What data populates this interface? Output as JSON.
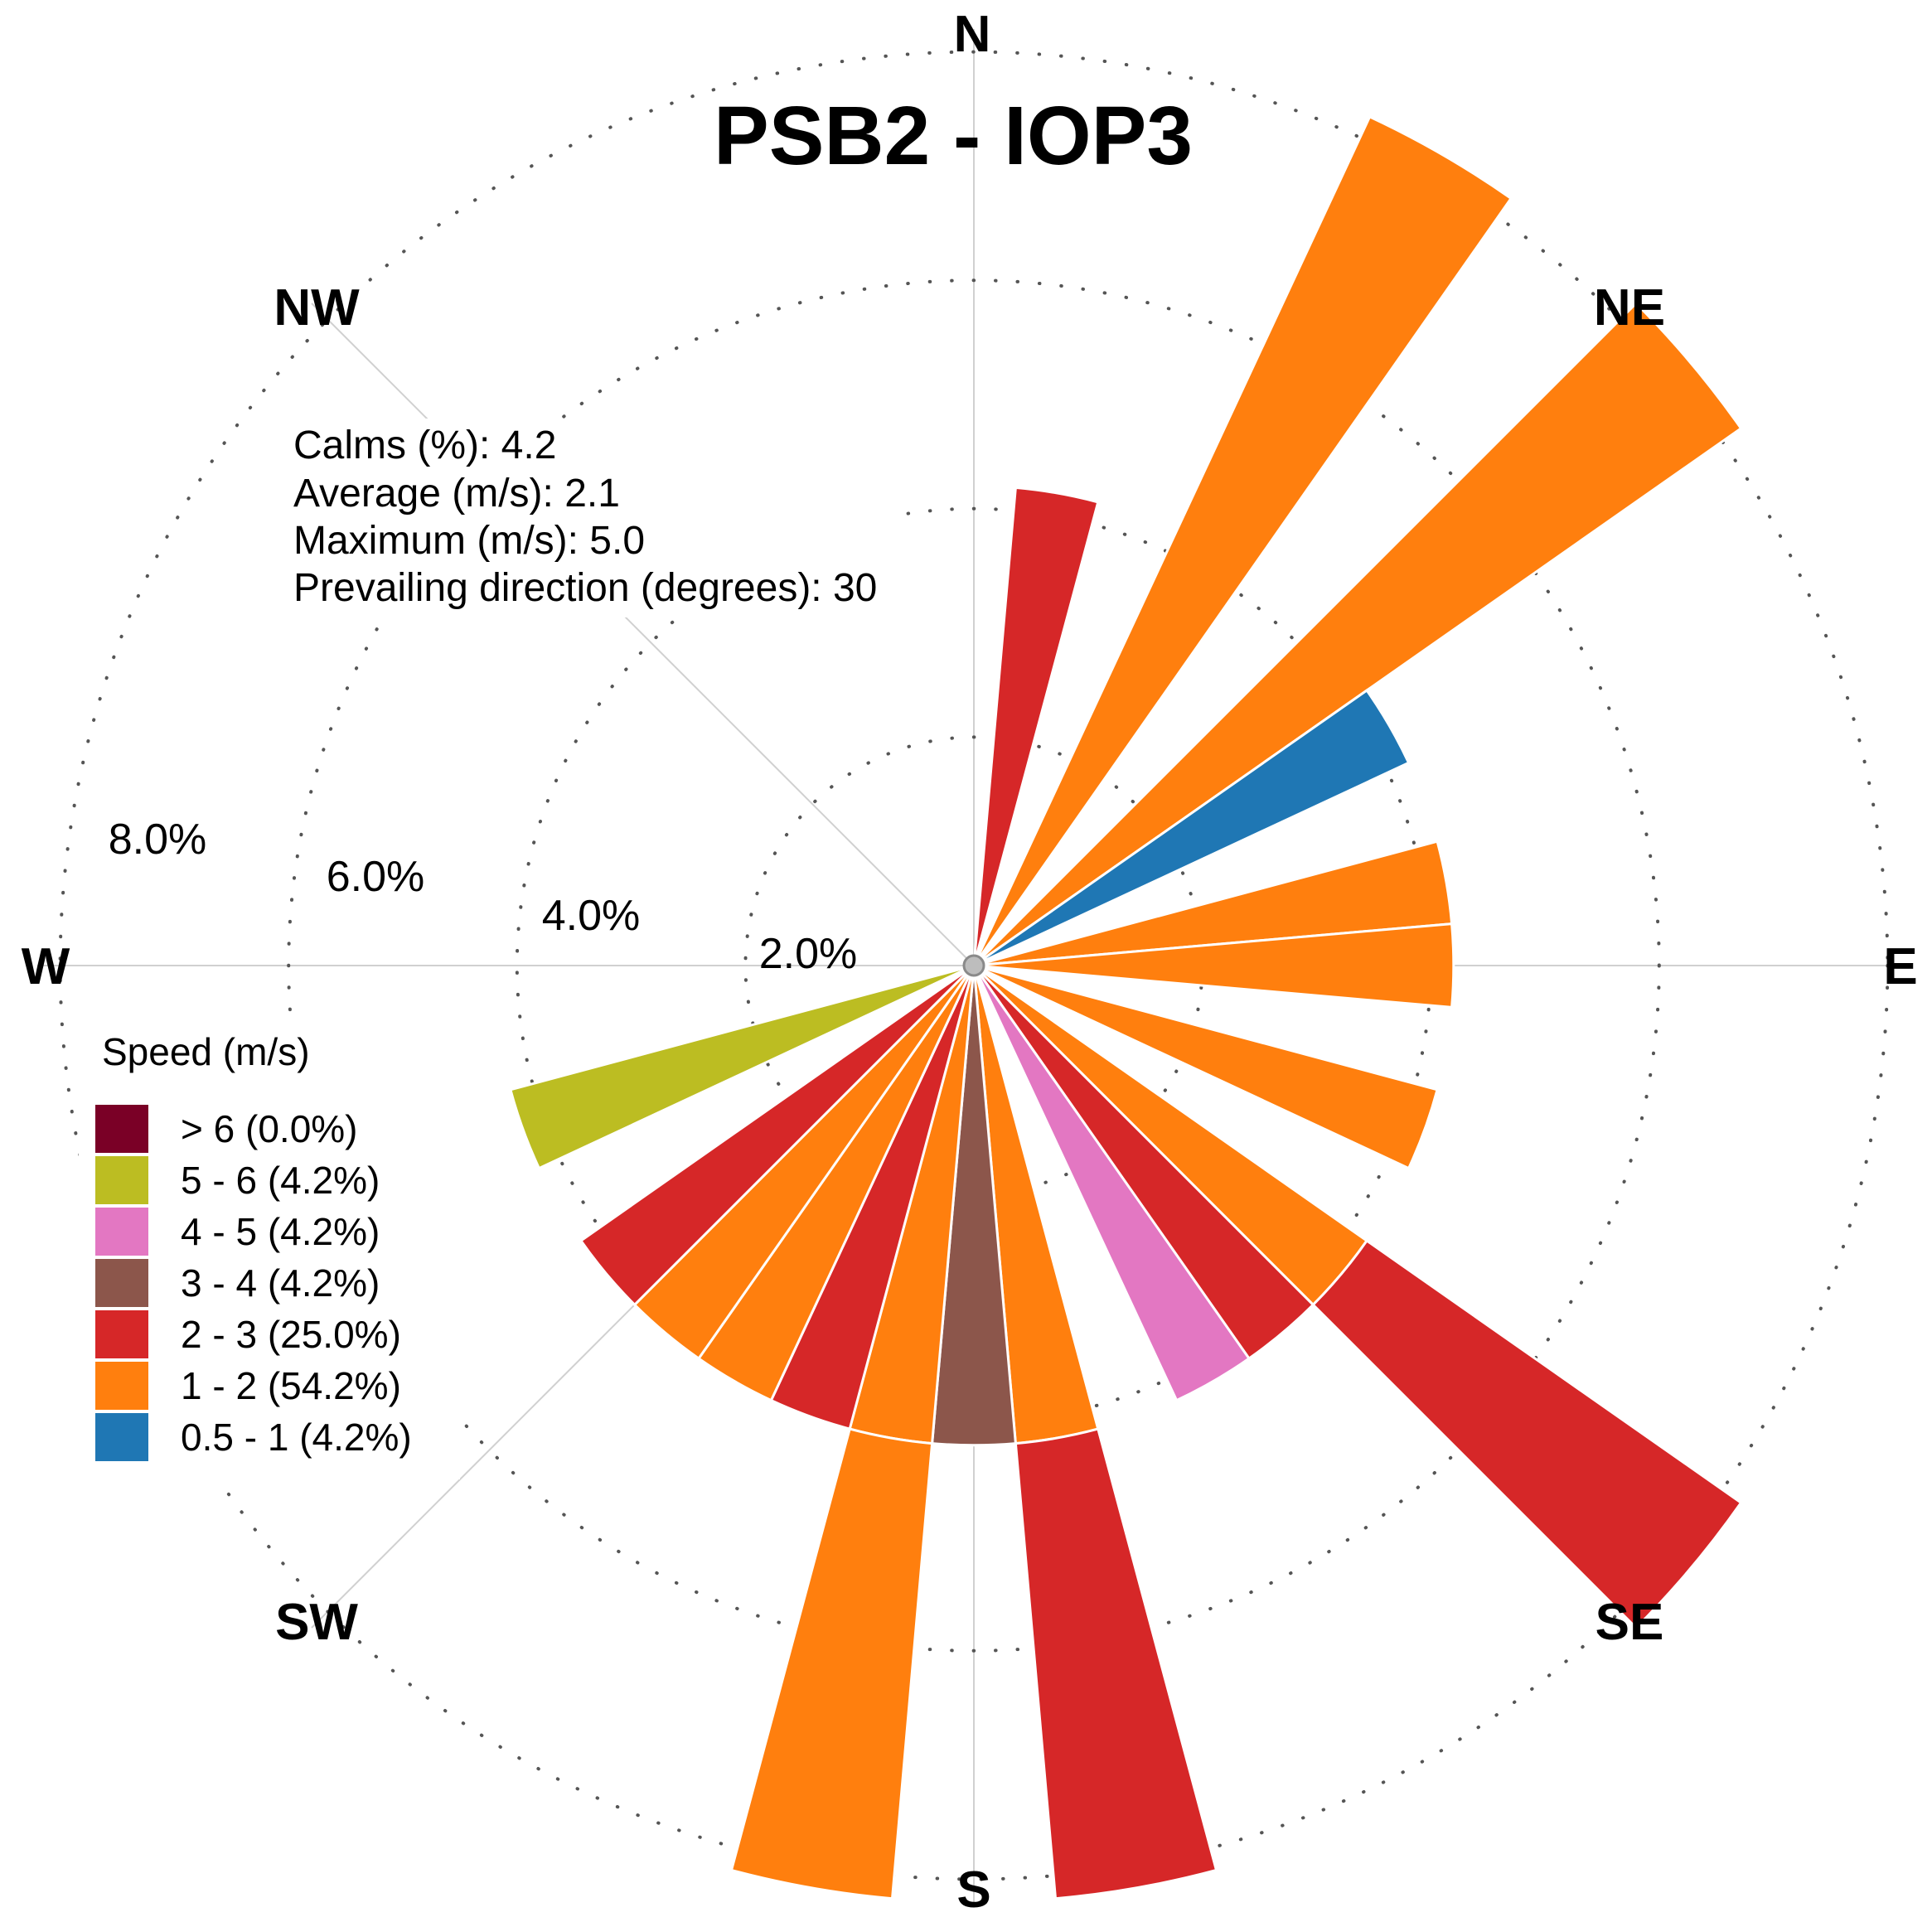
{
  "chart_data": {
    "type": "wind_rose",
    "title": "PSB2 - IOP3",
    "compass": [
      "N",
      "NE",
      "E",
      "SE",
      "S",
      "SW",
      "W",
      "NW"
    ],
    "ring_labels": [
      "2.0%",
      "4.0%",
      "6.0%",
      "8.0%"
    ],
    "rings_percent": [
      2,
      4,
      6,
      8
    ],
    "max_radius_percent": 8.2,
    "sector_width_degrees": 10,
    "stats": [
      "Calms (%): 4.2",
      "Average (m/s): 2.1",
      "Maximum (m/s): 5.0",
      "Prevailing direction (degrees): 30"
    ],
    "legend": {
      "title": "Speed (m/s)",
      "items": [
        {
          "label": "> 6 (0.0%)",
          "color": "#7a0026"
        },
        {
          "label": "5 - 6 (4.2%)",
          "color": "#bcbd22"
        },
        {
          "label": "4 - 5 (4.2%)",
          "color": "#e377c2"
        },
        {
          "label": "3 - 4 (4.2%)",
          "color": "#8c564b"
        },
        {
          "label": "2 - 3 (25.0%)",
          "color": "#d62728"
        },
        {
          "label": "1 - 2 (54.2%)",
          "color": "#ff7f0e"
        },
        {
          "label": "0.5 - 1 (4.2%)",
          "color": "#1f77b4"
        }
      ]
    },
    "bars": [
      {
        "direction": 10,
        "inner": 0,
        "outer": 4.2,
        "speed_bin": "2 - 3"
      },
      {
        "direction": 30,
        "inner": 0,
        "outer": 8.2,
        "speed_bin": "1 - 2"
      },
      {
        "direction": 50,
        "inner": 0,
        "outer": 8.2,
        "speed_bin": "1 - 2"
      },
      {
        "direction": 60,
        "inner": 0,
        "outer": 4.2,
        "speed_bin": "0.5 - 1"
      },
      {
        "direction": 80,
        "inner": 0,
        "outer": 4.2,
        "speed_bin": "1 - 2"
      },
      {
        "direction": 90,
        "inner": 0,
        "outer": 4.2,
        "speed_bin": "1 - 2"
      },
      {
        "direction": 110,
        "inner": 0,
        "outer": 4.2,
        "speed_bin": "1 - 2"
      },
      {
        "direction": 130,
        "inner": 0,
        "outer": 4.2,
        "speed_bin": "1 - 2"
      },
      {
        "direction": 130,
        "inner": 4.2,
        "outer": 8.2,
        "speed_bin": "2 - 3"
      },
      {
        "direction": 140,
        "inner": 0,
        "outer": 4.2,
        "speed_bin": "2 - 3"
      },
      {
        "direction": 150,
        "inner": 0,
        "outer": 4.2,
        "speed_bin": "4 - 5"
      },
      {
        "direction": 170,
        "inner": 0,
        "outer": 4.2,
        "speed_bin": "1 - 2"
      },
      {
        "direction": 170,
        "inner": 4.2,
        "outer": 8.2,
        "speed_bin": "2 - 3"
      },
      {
        "direction": 180,
        "inner": 0,
        "outer": 4.2,
        "speed_bin": "3 - 4"
      },
      {
        "direction": 190,
        "inner": 0,
        "outer": 4.2,
        "speed_bin": "1 - 2"
      },
      {
        "direction": 190,
        "inner": 4.2,
        "outer": 8.2,
        "speed_bin": "1 - 2"
      },
      {
        "direction": 200,
        "inner": 0,
        "outer": 4.2,
        "speed_bin": "2 - 3"
      },
      {
        "direction": 210,
        "inner": 0,
        "outer": 4.2,
        "speed_bin": "1 - 2"
      },
      {
        "direction": 220,
        "inner": 0,
        "outer": 4.2,
        "speed_bin": "1 - 2"
      },
      {
        "direction": 230,
        "inner": 0,
        "outer": 4.2,
        "speed_bin": "2 - 3"
      },
      {
        "direction": 250,
        "inner": 0,
        "outer": 4.2,
        "speed_bin": "5 - 6"
      }
    ],
    "bin_colors": {
      "> 6": "#7a0026",
      "5 - 6": "#bcbd22",
      "4 - 5": "#e377c2",
      "3 - 4": "#8c564b",
      "2 - 3": "#d62728",
      "1 - 2": "#ff7f0e",
      "0.5 - 1": "#1f77b4"
    }
  }
}
